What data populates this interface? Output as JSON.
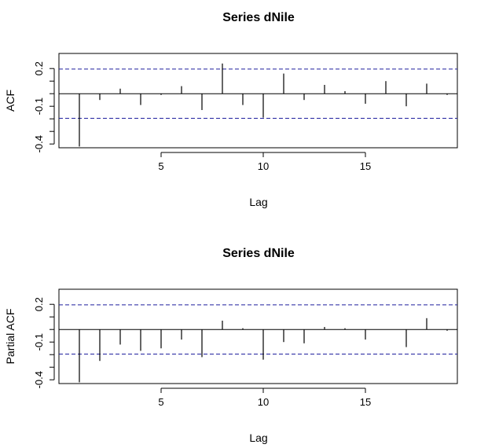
{
  "chart_data": [
    {
      "type": "bar",
      "title": "Series  dNile",
      "xlabel": "Lag",
      "ylabel": "ACF",
      "xlim": [
        0,
        19.5
      ],
      "ylim": [
        -0.43,
        0.32
      ],
      "xticks": [
        5,
        10,
        15
      ],
      "yticks": [
        0.2,
        -0.1,
        -0.4
      ],
      "yminor_ticks": [
        0.1,
        0.0,
        -0.2,
        -0.3
      ],
      "conf_limit": 0.196,
      "conf_color": "#1f1f9e",
      "lags": [
        1,
        2,
        3,
        4,
        5,
        6,
        7,
        8,
        9,
        10,
        11,
        12,
        13,
        14,
        15,
        16,
        17,
        18,
        19
      ],
      "values": [
        -0.42,
        -0.05,
        0.04,
        -0.09,
        -0.01,
        0.06,
        -0.13,
        0.24,
        -0.09,
        -0.19,
        0.16,
        -0.05,
        0.07,
        0.02,
        -0.08,
        0.1,
        -0.1,
        0.08,
        -0.01
      ]
    },
    {
      "type": "bar",
      "title": "Series  dNile",
      "xlabel": "Lag",
      "ylabel": "Partial ACF",
      "xlim": [
        0,
        19.5
      ],
      "ylim": [
        -0.43,
        0.32
      ],
      "xticks": [
        5,
        10,
        15
      ],
      "yticks": [
        0.2,
        -0.1,
        -0.4
      ],
      "yminor_ticks": [
        0.1,
        0.0,
        -0.2,
        -0.3
      ],
      "conf_limit": 0.196,
      "conf_color": "#1f1f9e",
      "lags": [
        1,
        2,
        3,
        4,
        5,
        6,
        7,
        8,
        9,
        10,
        11,
        12,
        13,
        14,
        15,
        16,
        17,
        18,
        19
      ],
      "values": [
        -0.42,
        -0.25,
        -0.12,
        -0.17,
        -0.15,
        -0.08,
        -0.22,
        0.07,
        0.01,
        -0.24,
        -0.1,
        -0.11,
        0.02,
        0.01,
        -0.08,
        0.0,
        -0.14,
        0.09,
        -0.01
      ]
    }
  ]
}
